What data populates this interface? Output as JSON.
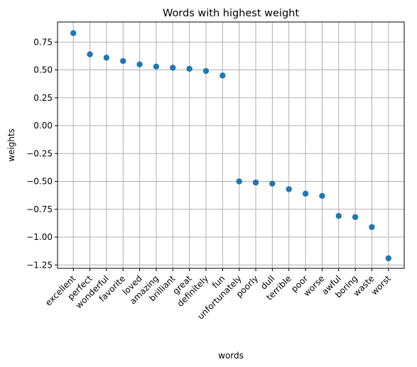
{
  "chart_data": {
    "type": "scatter",
    "title": "Words with highest weight",
    "xlabel": "words",
    "ylabel": "weights",
    "grid": true,
    "marker_color": "#1f77b4",
    "ylim": [
      -1.28,
      0.93
    ],
    "yticks": [
      -1.25,
      -1.0,
      -0.75,
      -0.5,
      -0.25,
      0.0,
      0.25,
      0.5,
      0.75
    ],
    "ytick_labels": [
      "−1.25",
      "−1.00",
      "−0.75",
      "−0.50",
      "−0.25",
      "0.00",
      "0.25",
      "0.50",
      "0.75"
    ],
    "categories": [
      "excellent",
      "perfect",
      "wonderful",
      "favorite",
      "loved",
      "amazing",
      "brilliant",
      "great",
      "definitely",
      "fun",
      "unfortunately",
      "poorly",
      "dull",
      "terrible",
      "poor",
      "worse",
      "awful",
      "boring",
      "waste",
      "worst"
    ],
    "values": [
      0.83,
      0.64,
      0.61,
      0.58,
      0.55,
      0.53,
      0.52,
      0.51,
      0.49,
      0.45,
      -0.5,
      -0.51,
      -0.52,
      -0.57,
      -0.61,
      -0.63,
      -0.81,
      -0.82,
      -0.91,
      -1.19
    ]
  }
}
